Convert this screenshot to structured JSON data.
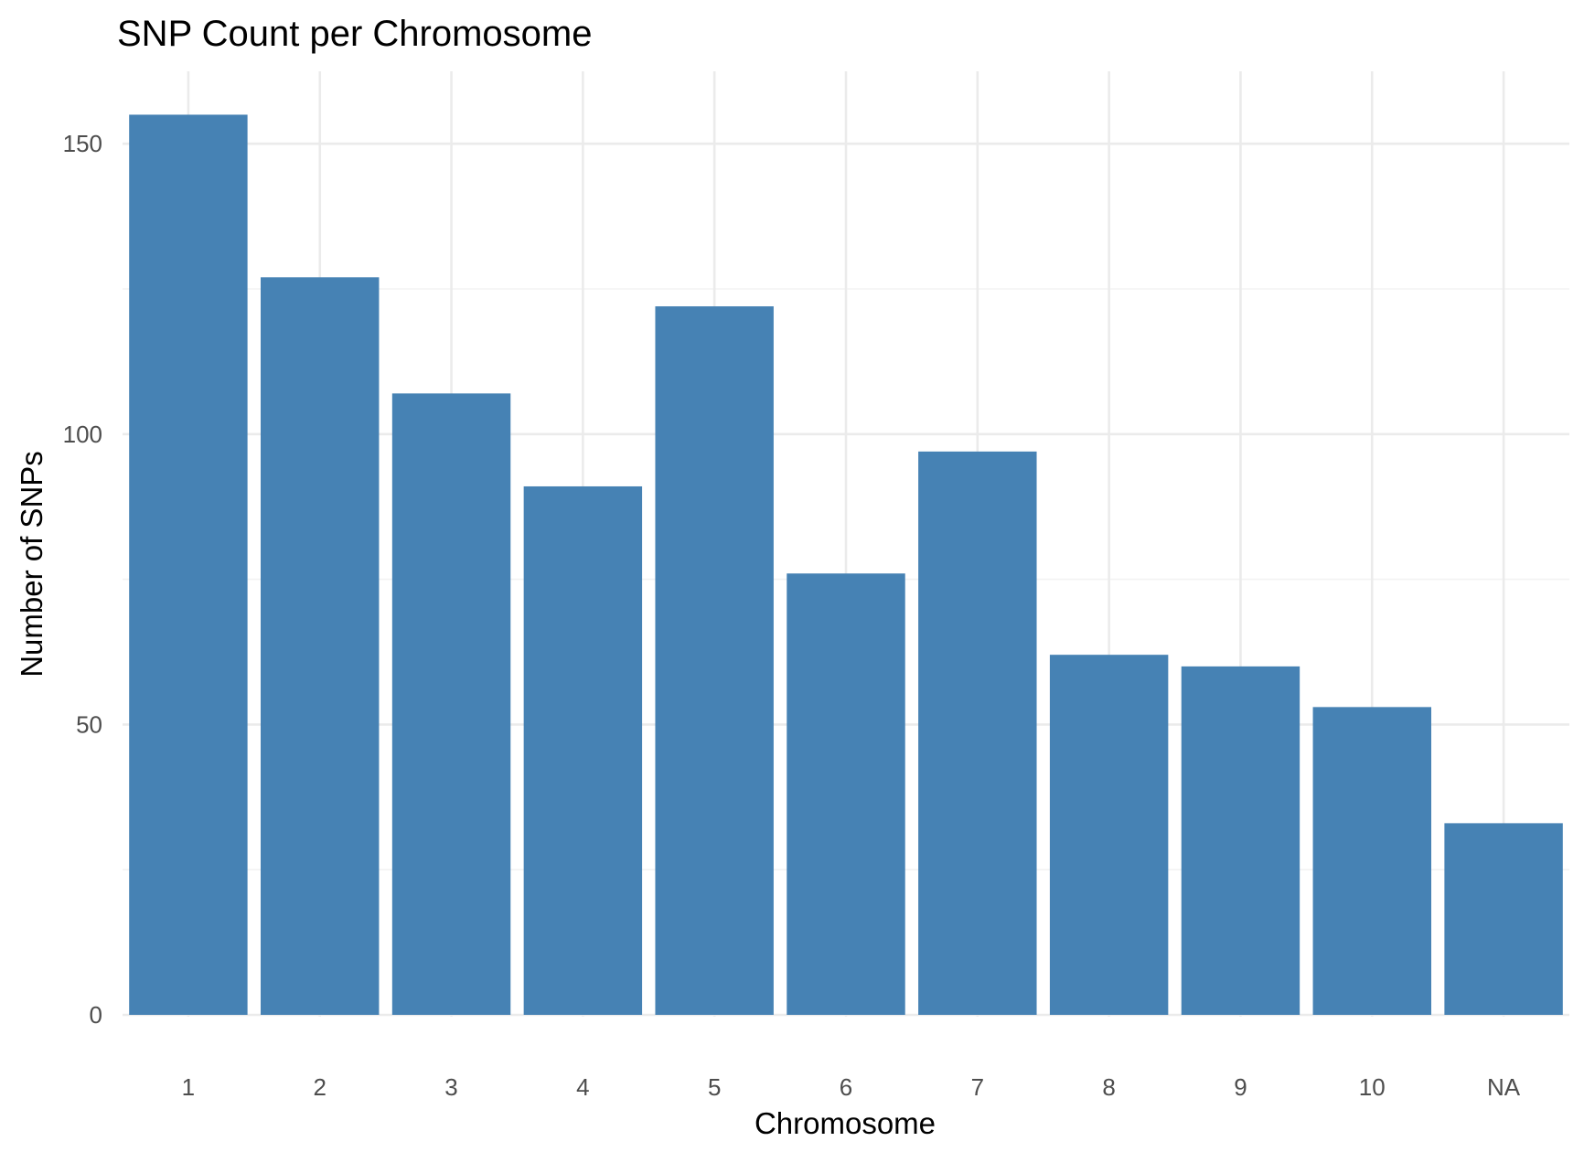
{
  "chart_data": {
    "type": "bar",
    "title": "SNP Count per Chromosome",
    "xlabel": "Chromosome",
    "ylabel": "Number of SNPs",
    "categories": [
      "1",
      "2",
      "3",
      "4",
      "5",
      "6",
      "7",
      "8",
      "9",
      "10",
      "NA"
    ],
    "values": [
      155,
      127,
      107,
      91,
      122,
      76,
      97,
      62,
      60,
      53,
      33
    ],
    "ylim": [
      0,
      162
    ],
    "yticks": [
      0,
      50,
      100,
      150
    ],
    "ytick_labels": [
      "0",
      "50",
      "100",
      "150"
    ],
    "grid": true,
    "bar_color": "#4682b4"
  }
}
